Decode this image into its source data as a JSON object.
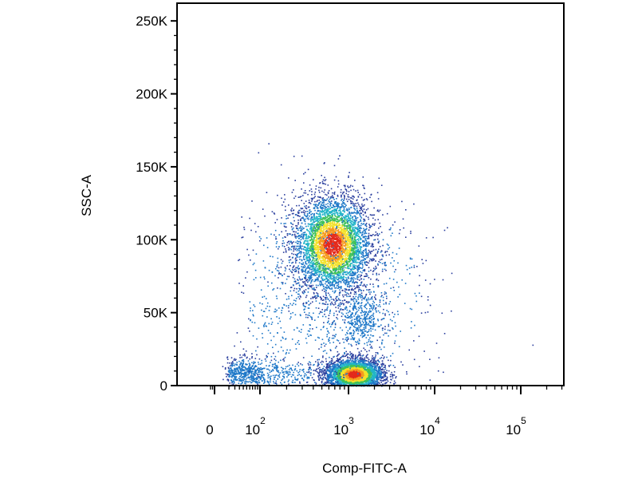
{
  "chart_data": {
    "type": "scatter",
    "style": "density-dot-plot",
    "xlabel": "Comp-FITC-A",
    "ylabel": "SSC-A",
    "x_scale": "biexponential",
    "y_scale": "linear",
    "ylim": [
      0,
      262144
    ],
    "y_ticks": [
      {
        "value": 0,
        "label": "0"
      },
      {
        "value": 50000,
        "label": "50K"
      },
      {
        "value": 100000,
        "label": "100K"
      },
      {
        "value": 150000,
        "label": "150K"
      },
      {
        "value": 200000,
        "label": "200K"
      },
      {
        "value": 250000,
        "label": "250K"
      }
    ],
    "x_ticks": [
      {
        "value": 0,
        "label": "0",
        "exp": ""
      },
      {
        "value": 100,
        "label": "10",
        "exp": "2"
      },
      {
        "value": 1000,
        "label": "10",
        "exp": "3"
      },
      {
        "value": 10000,
        "label": "10",
        "exp": "4"
      },
      {
        "value": 100000,
        "label": "10",
        "exp": "5"
      }
    ],
    "density_colors": [
      "#2b3f9e",
      "#1f78c8",
      "#22b5c8",
      "#3ec15a",
      "#f2e12a",
      "#f59a1e",
      "#e32a1c"
    ],
    "populations": [
      {
        "name": "",
        "x_center": 650,
        "y_center": 97000,
        "x_spread_decades": 0.22,
        "y_spread": 17000,
        "points": 4200
      },
      {
        "name": "",
        "x_center": 1150,
        "y_center": 8000,
        "x_spread_decades": 0.17,
        "y_spread": 5500,
        "points": 3200
      },
      {
        "name": "",
        "x_center": 60,
        "y_center": 9000,
        "x_spread_decades": 0.45,
        "y_spread": 5000,
        "points": 700
      },
      {
        "name": "",
        "x_center": 1400,
        "y_center": 45000,
        "x_spread_decades": 0.12,
        "y_spread": 9000,
        "points": 380
      },
      {
        "name": "",
        "x_center": 600,
        "y_center": 60000,
        "x_spread_decades": 0.55,
        "y_spread": 35000,
        "points": 1100
      }
    ],
    "grid": false,
    "legend": "none"
  }
}
